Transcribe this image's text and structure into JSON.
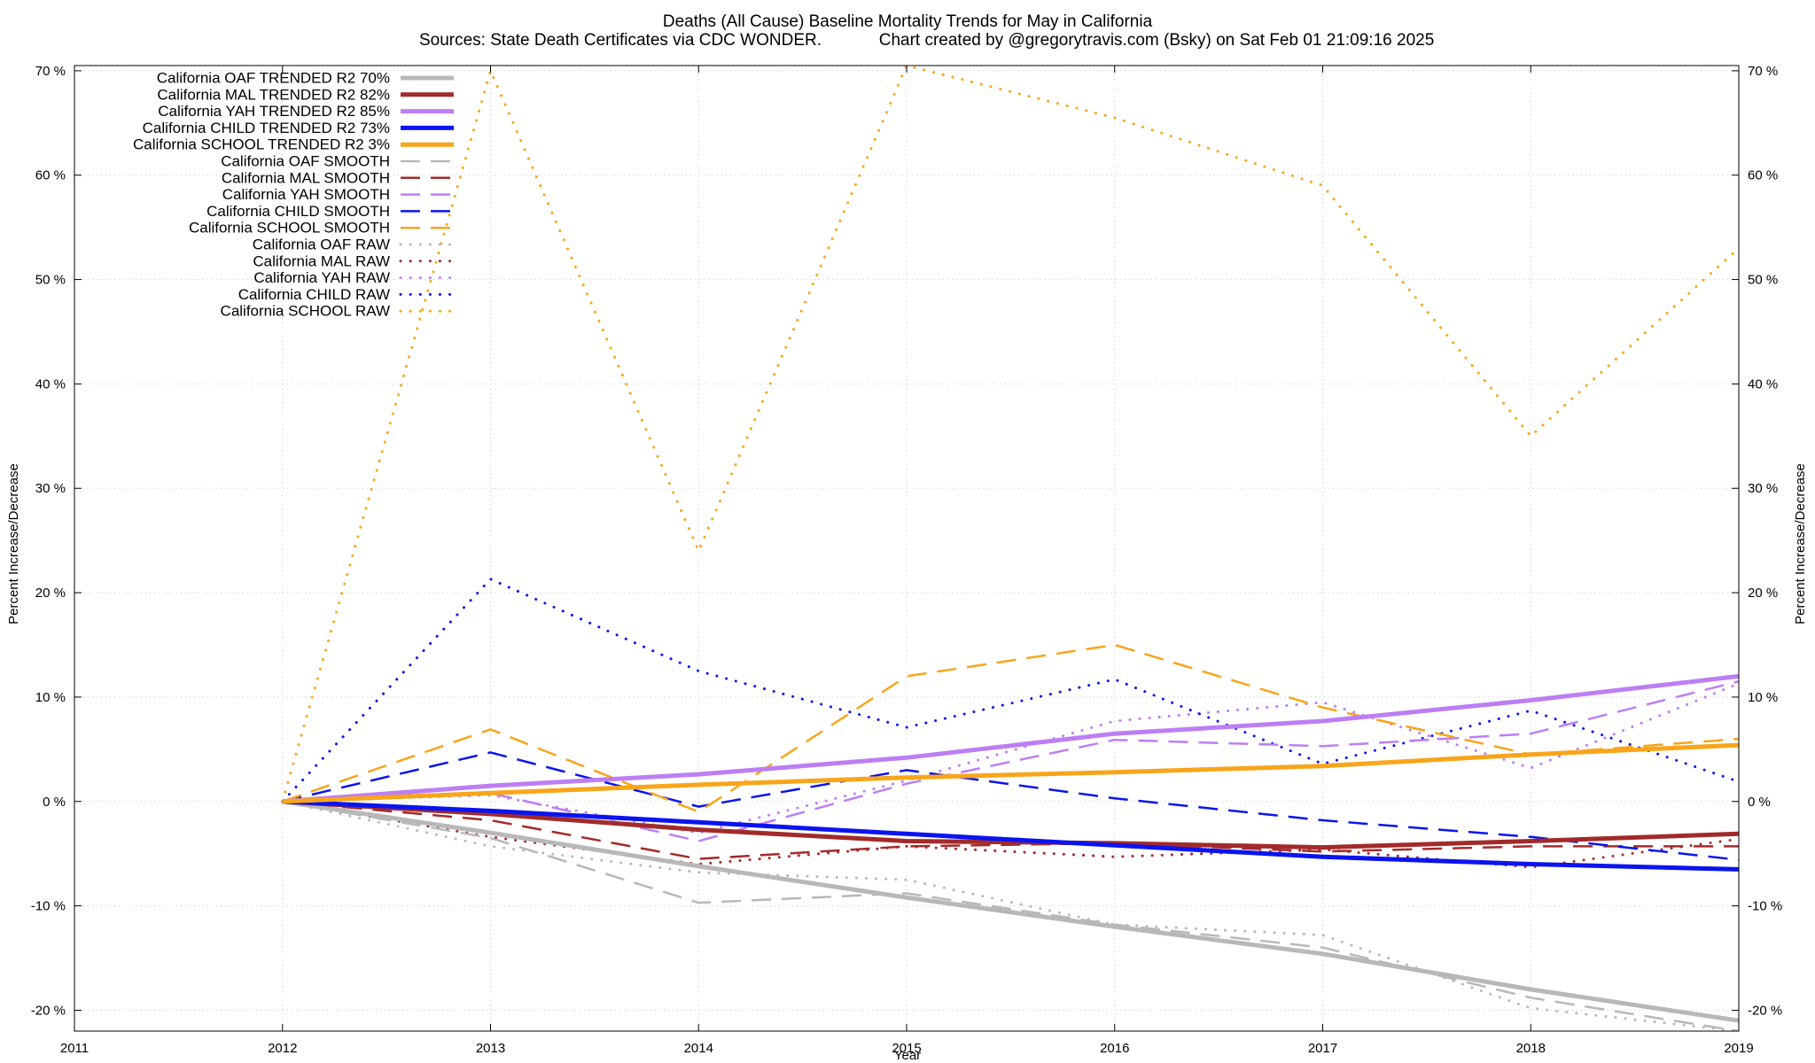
{
  "chart_data": {
    "type": "line",
    "title": "Deaths (All Cause)  Baseline Mortality Trends for May in California",
    "subtitle_left": "Sources: State Death Certificates via CDC WONDER.",
    "subtitle_right": "Chart created by @gregorytravis.com (Bsky) on Sat Feb 01 21:09:16 2025",
    "xlabel": "Year",
    "ylabel_left": "Percent Increase/Decrease",
    "ylabel_right": "Percent Increase/Decrease",
    "xlim": [
      2011,
      2019
    ],
    "ylim": [
      -22,
      70.5
    ],
    "xticks": [
      2011,
      2012,
      2013,
      2014,
      2015,
      2016,
      2017,
      2018,
      2019
    ],
    "xtick_labels": [
      "2011",
      "2012",
      "2013",
      "2014",
      "2015",
      "2016",
      "2017",
      "2018",
      "2019"
    ],
    "yticks": [
      -20,
      -10,
      0,
      10,
      20,
      30,
      40,
      50,
      60,
      70
    ],
    "ytick_labels": [
      "-20 %",
      "-10 %",
      "0 %",
      "10 %",
      "20 %",
      "30 %",
      "40 %",
      "50 %",
      "60 %",
      "70 %"
    ],
    "grid": true,
    "legend_position": "top-left",
    "colors": {
      "OAF": "#b8b8b8",
      "MAL": "#a32a2a",
      "YAH": "#bd7ef4",
      "CHILD": "#0a14f0",
      "SCHOOL": "#f8a51a"
    },
    "series": [
      {
        "name": "California OAF TRENDED R2  70%",
        "group": "OAF",
        "style": "trend",
        "x": [
          2012,
          2013,
          2014,
          2015,
          2016,
          2017,
          2018,
          2019
        ],
        "y": [
          0,
          -3.0,
          -6.2,
          -9.2,
          -12.0,
          -14.6,
          -18.0,
          -21.0
        ]
      },
      {
        "name": "California MAL TRENDED R2  82%",
        "group": "MAL",
        "style": "trend",
        "x": [
          2012,
          2013,
          2014,
          2015,
          2016,
          2017,
          2018,
          2019
        ],
        "y": [
          0,
          -1.2,
          -2.7,
          -3.8,
          -4.0,
          -4.4,
          -3.8,
          -3.1
        ]
      },
      {
        "name": "California YAH TRENDED R2  85%",
        "group": "YAH",
        "style": "trend",
        "x": [
          2012,
          2013,
          2014,
          2015,
          2016,
          2017,
          2018,
          2019
        ],
        "y": [
          0,
          1.5,
          2.6,
          4.2,
          6.5,
          7.7,
          9.7,
          12.0
        ]
      },
      {
        "name": "California CHILD TRENDED R2  73%",
        "group": "CHILD",
        "style": "trend",
        "x": [
          2012,
          2013,
          2014,
          2015,
          2016,
          2017,
          2018,
          2019
        ],
        "y": [
          0,
          -0.9,
          -2.0,
          -3.1,
          -4.2,
          -5.3,
          -6.0,
          -6.5
        ]
      },
      {
        "name": "California SCHOOL TRENDED R2   3%",
        "group": "SCHOOL",
        "style": "trend",
        "x": [
          2012,
          2013,
          2014,
          2015,
          2016,
          2017,
          2018,
          2019
        ],
        "y": [
          0,
          0.8,
          1.6,
          2.3,
          2.8,
          3.4,
          4.5,
          5.4
        ]
      },
      {
        "name": "California OAF SMOOTH",
        "group": "OAF",
        "style": "smooth",
        "x": [
          2012,
          2013,
          2014,
          2015,
          2016,
          2017,
          2018,
          2019
        ],
        "y": [
          0,
          -3.5,
          -9.7,
          -8.8,
          -11.8,
          -14.0,
          -18.8,
          -22.0
        ]
      },
      {
        "name": "California MAL SMOOTH",
        "group": "MAL",
        "style": "smooth",
        "x": [
          2012,
          2013,
          2014,
          2015,
          2016,
          2017,
          2018,
          2019
        ],
        "y": [
          0,
          -1.8,
          -5.5,
          -4.3,
          -4.0,
          -4.8,
          -4.3,
          -4.3
        ]
      },
      {
        "name": "California YAH SMOOTH",
        "group": "YAH",
        "style": "smooth",
        "x": [
          2012,
          2013,
          2014,
          2015,
          2016,
          2017,
          2018,
          2019
        ],
        "y": [
          0,
          0.8,
          -3.8,
          1.7,
          5.9,
          5.3,
          6.5,
          11.5
        ]
      },
      {
        "name": "California CHILD SMOOTH",
        "group": "CHILD",
        "style": "smooth",
        "x": [
          2012,
          2013,
          2014,
          2015,
          2016,
          2017,
          2018,
          2019
        ],
        "y": [
          0,
          4.7,
          -0.5,
          3.0,
          0.3,
          -1.8,
          -3.4,
          -5.6
        ]
      },
      {
        "name": "California SCHOOL SMOOTH",
        "group": "SCHOOL",
        "style": "smooth",
        "x": [
          2012,
          2013,
          2014,
          2015,
          2016,
          2017,
          2018,
          2019
        ],
        "y": [
          0,
          6.9,
          -1.0,
          12.0,
          15.0,
          9.0,
          4.5,
          6.0
        ]
      },
      {
        "name": "California OAF RAW",
        "group": "OAF",
        "style": "raw",
        "x": [
          2012,
          2013,
          2014,
          2015,
          2016,
          2017,
          2018,
          2019
        ],
        "y": [
          0,
          -4.3,
          -6.8,
          -7.5,
          -11.8,
          -12.8,
          -19.8,
          -22.0
        ]
      },
      {
        "name": "California MAL RAW",
        "group": "MAL",
        "style": "raw",
        "x": [
          2012,
          2013,
          2014,
          2015,
          2016,
          2017,
          2018,
          2019
        ],
        "y": [
          0,
          -3.4,
          -6.0,
          -4.3,
          -5.3,
          -4.6,
          -6.3,
          -3.6
        ]
      },
      {
        "name": "California YAH RAW",
        "group": "YAH",
        "style": "raw",
        "x": [
          2012,
          2013,
          2014,
          2015,
          2016,
          2017,
          2018,
          2019
        ],
        "y": [
          0,
          0.6,
          -3.0,
          2.0,
          7.7,
          9.5,
          3.2,
          11.3
        ]
      },
      {
        "name": "California CHILD RAW",
        "group": "CHILD",
        "style": "raw",
        "x": [
          2012,
          2013,
          2014,
          2015,
          2016,
          2017,
          2018,
          2019
        ],
        "y": [
          0,
          21.3,
          12.5,
          7.1,
          11.7,
          3.6,
          8.7,
          1.9
        ]
      },
      {
        "name": "California SCHOOL RAW",
        "group": "SCHOOL",
        "style": "raw",
        "x": [
          2012,
          2013,
          2014,
          2015,
          2016,
          2017,
          2018,
          2019
        ],
        "y": [
          0,
          70.0,
          24.0,
          70.5,
          65.5,
          59.0,
          35.0,
          53.0
        ]
      }
    ]
  }
}
